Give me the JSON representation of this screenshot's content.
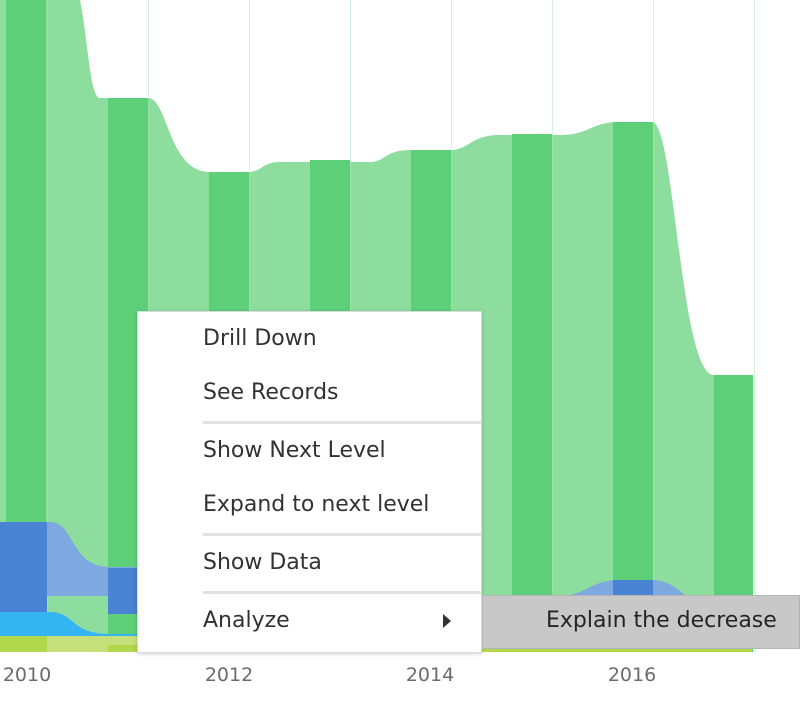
{
  "colors": {
    "bar_dark": "#5ccf78",
    "bar_light": "#8ddd9e",
    "blue_dark": "#4a82d4",
    "blue_light": "#7ea8e0",
    "cyan": "#35b4f2",
    "lime": "#b0d84a",
    "lime_light": "#c5e07a",
    "menu_text": "#323232",
    "submenu_bg": "#c8c8c8"
  },
  "chart_data": {
    "type": "area",
    "x_ticks": [
      "2010",
      "2012",
      "2014",
      "2016"
    ],
    "series": [
      {
        "color": "green"
      },
      {
        "color": "blue"
      },
      {
        "color": "cyan"
      },
      {
        "color": "lime"
      }
    ]
  },
  "context_menu": {
    "items": [
      {
        "label": "Drill Down"
      },
      {
        "label": "See Records"
      },
      {
        "label": "Show Next Level"
      },
      {
        "label": "Expand to next level"
      },
      {
        "label": "Show Data"
      },
      {
        "label": "Analyze",
        "icon": "submenu-arrow-icon"
      }
    ]
  },
  "submenu": {
    "items": [
      {
        "label": "Explain the decrease"
      }
    ]
  }
}
